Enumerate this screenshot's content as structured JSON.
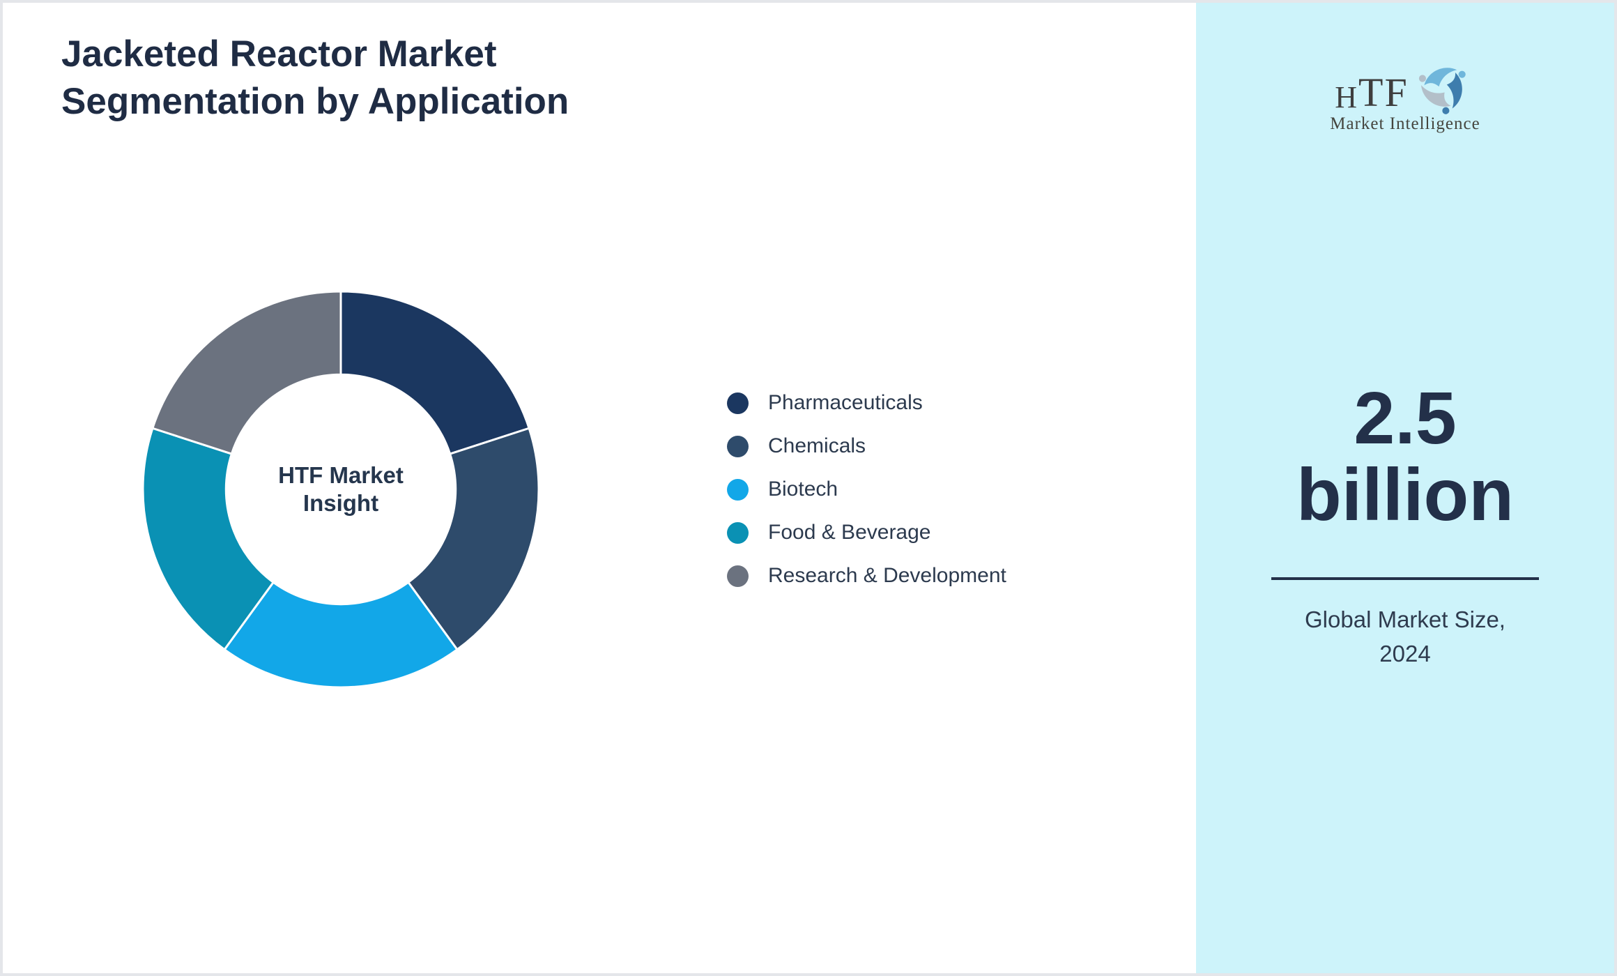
{
  "title": "Jacketed Reactor Market\nSegmentation by Application",
  "chart_data": {
    "type": "pie",
    "variant": "donut",
    "title": "",
    "categories": [
      "Pharmaceuticals",
      "Chemicals",
      "Biotech",
      "Food & Beverage",
      "Research & Development"
    ],
    "values": [
      20,
      20,
      20,
      20,
      20
    ],
    "values_note": "no numeric labels shown; five visually equal 72-degree segments (~20% each), clockwise from 12 o'clock",
    "colors": [
      "#1b3760",
      "#2e4b6b",
      "#12a7e8",
      "#0a91b4",
      "#6b727f"
    ],
    "start_angle_deg": 0,
    "direction": "clockwise",
    "inner_radius_ratio": 0.58,
    "separator_color": "#ffffff",
    "center_label": "HTF Market\nInsight",
    "legend_position": "right-middle"
  },
  "sidebar": {
    "background": "#cdf3fa",
    "logo": {
      "h": "H",
      "tf": "TF",
      "subtitle": "Market Intelligence",
      "icon": "three-dolphins-swirl-icon",
      "icon_colors": [
        "#6fb6db",
        "#3e7dad",
        "#b3bfc9"
      ]
    },
    "stat_value": "2.5\nbillion",
    "stat_caption": "Global Market Size,\n2024"
  }
}
